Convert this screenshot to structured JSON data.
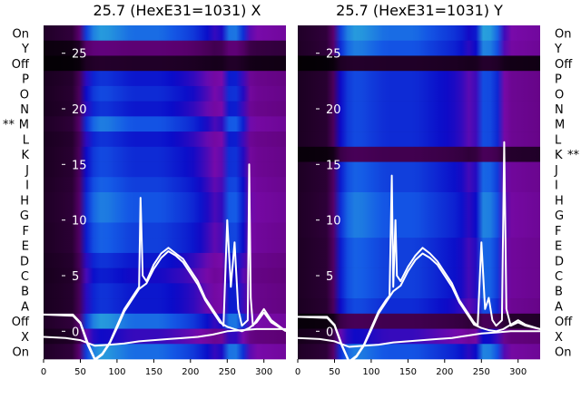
{
  "chart_data": [
    {
      "type": "heatmap",
      "title": "25.7 (HexE31=1031) X",
      "row_labels": [
        "On",
        "Y",
        "Off",
        "P",
        "O",
        "N",
        "M",
        "L",
        "K",
        "J",
        "I",
        "H",
        "G",
        "F",
        "E",
        "D",
        "C",
        "B",
        "A",
        "Off",
        "X",
        "On"
      ],
      "row_labels_side": "left",
      "row_markers": [
        {
          "row": "M",
          "text": "**"
        }
      ],
      "x_ticks": [
        0,
        50,
        100,
        150,
        200,
        250,
        300
      ],
      "xlim": [
        0,
        330
      ],
      "y_ticks": [
        0,
        5,
        10,
        15,
        20,
        25
      ],
      "y_range_shown": [
        -2.5,
        27.5
      ],
      "row_intensity": [
        0.9,
        0.3,
        0.1,
        0.7,
        0.75,
        0.7,
        0.85,
        0.7,
        0.75,
        0.75,
        0.8,
        0.85,
        0.85,
        0.8,
        0.8,
        0.7,
        0.65,
        0.7,
        0.7,
        0.9,
        0.6,
        0.9
      ],
      "spectrum_profile": {
        "x": [
          0,
          40,
          50,
          60,
          80,
          100,
          120,
          140,
          160,
          180,
          200,
          220,
          240,
          250,
          260,
          270,
          280,
          290,
          330
        ],
        "y": [
          0.1,
          0.15,
          0.3,
          0.9,
          1.0,
          0.95,
          0.9,
          0.9,
          0.9,
          0.85,
          0.8,
          0.7,
          0.55,
          0.9,
          0.95,
          0.8,
          0.55,
          0.5,
          0.45
        ]
      },
      "lines": [
        {
          "x": [
            0,
            40,
            50,
            60,
            70,
            80,
            90,
            100,
            110,
            120,
            125,
            130,
            132,
            135,
            140,
            150,
            160,
            170,
            180,
            190,
            200,
            210,
            220,
            230,
            240,
            245,
            250,
            255,
            260,
            265,
            270,
            278,
            280,
            282,
            285,
            290,
            300,
            310,
            330
          ],
          "y": [
            1.5,
            1.5,
            0.8,
            -1,
            -2.5,
            -2,
            -1,
            0.5,
            2,
            3,
            3.5,
            4,
            12,
            5,
            4.5,
            6,
            7,
            7.5,
            7,
            6.5,
            5.5,
            4.5,
            3,
            2,
            1,
            0.5,
            10,
            4,
            8,
            2,
            0.5,
            1,
            15,
            3,
            0.5,
            1,
            2,
            1,
            0
          ]
        },
        {
          "x": [
            0,
            40,
            50,
            60,
            70,
            80,
            90,
            100,
            110,
            120,
            130,
            140,
            150,
            160,
            170,
            180,
            190,
            200,
            210,
            220,
            230,
            240,
            250,
            260,
            270,
            280,
            290,
            300,
            310,
            330
          ],
          "y": [
            1.5,
            1.4,
            0.7,
            -1.2,
            -2.6,
            -2.1,
            -1.1,
            0.3,
            1.8,
            2.8,
            3.8,
            4.3,
            5.6,
            6.6,
            7.2,
            6.8,
            6.2,
            5.2,
            4.2,
            2.8,
            1.8,
            0.8,
            0.4,
            0.2,
            0,
            0.3,
            0.8,
            1.7,
            0.8,
            0
          ]
        },
        {
          "x": [
            0,
            30,
            50,
            70,
            90,
            110,
            130,
            150,
            170,
            190,
            210,
            230,
            250,
            270,
            290,
            310,
            330
          ],
          "y": [
            -0.5,
            -0.6,
            -0.8,
            -1.3,
            -1.2,
            -1.1,
            -0.9,
            -0.8,
            -0.7,
            -0.6,
            -0.5,
            -0.3,
            0,
            0.1,
            0.2,
            0.2,
            0.2
          ]
        }
      ]
    },
    {
      "type": "heatmap",
      "title": "25.7 (HexE31=1031) Y",
      "row_labels": [
        "On",
        "Y",
        "Off",
        "P",
        "O",
        "N",
        "M",
        "L",
        "K",
        "J",
        "I",
        "H",
        "G",
        "F",
        "E",
        "D",
        "C",
        "B",
        "A",
        "Off",
        "X",
        "On"
      ],
      "row_labels_side": "right",
      "row_markers": [
        {
          "row": "K",
          "text": "**"
        }
      ],
      "x_ticks": [
        0,
        50,
        100,
        150,
        200,
        250,
        300
      ],
      "xlim": [
        0,
        330
      ],
      "y_ticks": [
        0,
        5,
        10,
        15,
        20,
        25
      ],
      "y_range_shown": [
        -2.5,
        27.5
      ],
      "row_intensity": [
        0.9,
        0.85,
        0.1,
        0.75,
        0.75,
        0.75,
        0.75,
        0.75,
        0.2,
        0.8,
        0.8,
        0.85,
        0.85,
        0.85,
        0.8,
        0.8,
        0.8,
        0.8,
        0.75,
        0.2,
        0.6,
        0.85
      ],
      "spectrum_profile": {
        "x": [
          0,
          40,
          50,
          60,
          80,
          100,
          120,
          140,
          160,
          180,
          200,
          220,
          240,
          250,
          260,
          270,
          280,
          290,
          330
        ],
        "y": [
          0.1,
          0.15,
          0.3,
          0.9,
          1.0,
          0.95,
          0.9,
          0.9,
          0.9,
          0.85,
          0.8,
          0.75,
          0.6,
          1.0,
          1.0,
          0.95,
          0.6,
          0.5,
          0.45
        ]
      },
      "lines": [
        {
          "x": [
            0,
            40,
            50,
            60,
            70,
            80,
            90,
            100,
            110,
            120,
            125,
            128,
            130,
            133,
            135,
            140,
            150,
            160,
            170,
            180,
            190,
            200,
            210,
            220,
            230,
            240,
            245,
            250,
            255,
            260,
            265,
            270,
            278,
            281,
            284,
            290,
            300,
            310,
            330
          ],
          "y": [
            1.3,
            1.3,
            0.6,
            -1.2,
            -2.7,
            -2.2,
            -1.2,
            0.3,
            1.8,
            2.8,
            3.2,
            14,
            4,
            10,
            5,
            4.5,
            5.8,
            6.8,
            7.5,
            7,
            6.3,
            5.3,
            4.3,
            2.8,
            1.8,
            0.8,
            0.5,
            8,
            2,
            3,
            1,
            0.5,
            1,
            17,
            2,
            0.5,
            0.8,
            0.5,
            0.2
          ]
        },
        {
          "x": [
            0,
            40,
            50,
            60,
            70,
            80,
            90,
            100,
            110,
            120,
            130,
            140,
            150,
            160,
            170,
            180,
            190,
            200,
            210,
            220,
            230,
            240,
            250,
            260,
            270,
            280,
            290,
            300,
            310,
            330
          ],
          "y": [
            1.3,
            1.2,
            0.5,
            -1.3,
            -2.8,
            -2.3,
            -1.3,
            0.1,
            1.6,
            2.6,
            3.6,
            4.1,
            5.4,
            6.4,
            7,
            6.6,
            6,
            5,
            4,
            2.6,
            1.6,
            0.6,
            0.3,
            0.1,
            0,
            0.2,
            0.6,
            1,
            0.6,
            0.2
          ]
        },
        {
          "x": [
            0,
            30,
            50,
            70,
            90,
            110,
            130,
            150,
            170,
            190,
            210,
            230,
            250,
            270,
            290,
            310,
            330
          ],
          "y": [
            -0.6,
            -0.7,
            -0.9,
            -1.4,
            -1.3,
            -1.2,
            -1,
            -0.9,
            -0.8,
            -0.7,
            -0.6,
            -0.4,
            -0.2,
            -0.1,
            0,
            0,
            0
          ]
        }
      ]
    }
  ]
}
